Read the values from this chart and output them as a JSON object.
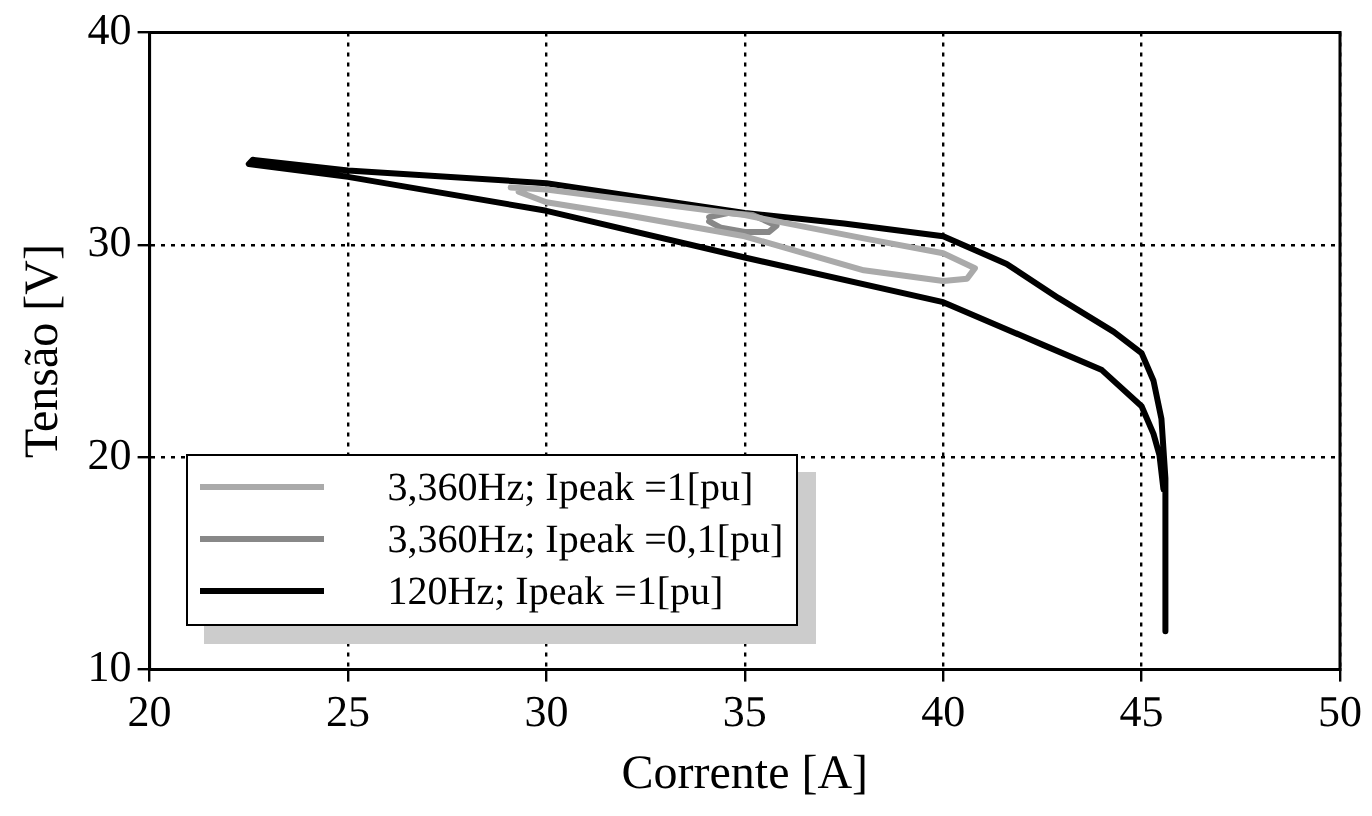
{
  "chart_data": {
    "type": "line",
    "xlabel": "Corrente [A]",
    "ylabel": "Tensão [V]",
    "xlim": [
      20,
      50
    ],
    "xticks": [
      20,
      25,
      30,
      35,
      40,
      45,
      50
    ],
    "ylim": [
      10,
      40
    ],
    "yticks": [
      10,
      20,
      30,
      40
    ],
    "grid": true,
    "legend": "bottom left",
    "marker": "none",
    "line_style": "solid",
    "series": [
      {
        "name": "3,360Hz; Ipeak =1[pu]",
        "color": "#aaaaaa",
        "x": [
          29.1,
          30,
          35,
          38,
          40,
          40.8,
          40.6,
          40,
          38,
          35,
          32,
          30,
          29.3
        ],
        "values": [
          32.7,
          32.6,
          31.4,
          30.3,
          29.6,
          28.9,
          28.4,
          28.3,
          28.8,
          30.4,
          31.4,
          32.0,
          32.5
        ]
      },
      {
        "name": "3,360Hz; Ipeak =0,1[pu]",
        "color": "#888888",
        "x": [
          34.1,
          34.6,
          35.2,
          35.8,
          35.6,
          35.0,
          34.4,
          34.1
        ],
        "values": [
          31.3,
          31.5,
          31.4,
          30.9,
          30.6,
          30.6,
          30.8,
          31.1
        ]
      },
      {
        "name": "120Hz; Ipeak =1[pu]",
        "color": "#000000",
        "x": [
          45.6,
          45.6,
          45.5,
          45.3,
          45,
          44.3,
          42.9,
          41.6,
          40,
          37.5,
          35,
          30,
          25,
          22.6,
          22.5,
          25,
          30,
          35,
          40,
          42.5,
          44,
          45,
          45.3,
          45.45,
          45.55
        ],
        "values": [
          11.8,
          19,
          21.8,
          23.6,
          24.9,
          25.9,
          27.5,
          29.1,
          30.4,
          31.0,
          31.5,
          32.9,
          33.5,
          34.0,
          33.8,
          33.2,
          31.6,
          29.4,
          27.3,
          25.3,
          24.1,
          22.4,
          21.1,
          20.1,
          18.5
        ]
      }
    ]
  }
}
